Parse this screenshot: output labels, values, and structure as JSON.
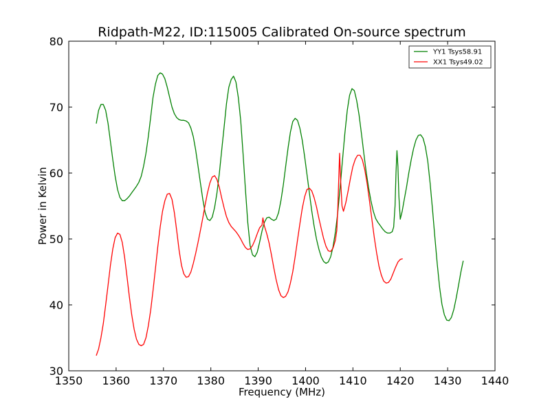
{
  "chart_data": {
    "type": "line",
    "title": "Ridpath-M22, ID:115005 Calibrated On-source spectrum",
    "xlabel": "Frequency (MHz)",
    "ylabel": "Power in Kelvin",
    "xlim": [
      1350,
      1440
    ],
    "ylim": [
      30,
      80
    ],
    "xticks": [
      1350,
      1360,
      1370,
      1380,
      1390,
      1400,
      1410,
      1420,
      1430,
      1440
    ],
    "yticks": [
      30,
      40,
      50,
      60,
      70,
      80
    ],
    "grid": false,
    "legend": {
      "position": "top-right"
    },
    "series": [
      {
        "name": "YY1 Tsys58.91",
        "color": "#008000",
        "points": [
          [
            1355.8,
            67.5
          ],
          [
            1356.3,
            69.5
          ],
          [
            1356.8,
            70.4
          ],
          [
            1357.3,
            70.4
          ],
          [
            1357.8,
            69.5
          ],
          [
            1358.3,
            67.5
          ],
          [
            1358.8,
            64.8
          ],
          [
            1359.3,
            62.0
          ],
          [
            1359.8,
            59.5
          ],
          [
            1360.3,
            57.5
          ],
          [
            1360.8,
            56.3
          ],
          [
            1361.3,
            55.8
          ],
          [
            1361.8,
            55.8
          ],
          [
            1362.3,
            56.1
          ],
          [
            1362.8,
            56.5
          ],
          [
            1363.3,
            57.0
          ],
          [
            1363.8,
            57.5
          ],
          [
            1364.3,
            58.0
          ],
          [
            1364.8,
            58.6
          ],
          [
            1365.3,
            59.5
          ],
          [
            1365.8,
            61.0
          ],
          [
            1366.3,
            63.0
          ],
          [
            1366.8,
            65.5
          ],
          [
            1367.3,
            68.5
          ],
          [
            1367.8,
            71.5
          ],
          [
            1368.3,
            73.5
          ],
          [
            1368.8,
            74.8
          ],
          [
            1369.3,
            75.2
          ],
          [
            1369.8,
            75.0
          ],
          [
            1370.3,
            74.3
          ],
          [
            1370.8,
            73.0
          ],
          [
            1371.3,
            71.5
          ],
          [
            1371.8,
            70.0
          ],
          [
            1372.3,
            69.0
          ],
          [
            1372.8,
            68.4
          ],
          [
            1373.3,
            68.1
          ],
          [
            1373.8,
            68.0
          ],
          [
            1374.3,
            68.0
          ],
          [
            1374.8,
            67.9
          ],
          [
            1375.3,
            67.6
          ],
          [
            1375.8,
            66.8
          ],
          [
            1376.3,
            65.5
          ],
          [
            1376.8,
            63.5
          ],
          [
            1377.3,
            61.0
          ],
          [
            1377.8,
            58.5
          ],
          [
            1378.3,
            56.0
          ],
          [
            1378.8,
            54.0
          ],
          [
            1379.3,
            53.0
          ],
          [
            1379.8,
            52.8
          ],
          [
            1380.3,
            53.3
          ],
          [
            1380.8,
            54.8
          ],
          [
            1381.3,
            57.0
          ],
          [
            1381.8,
            60.0
          ],
          [
            1382.3,
            63.5
          ],
          [
            1382.8,
            67.0
          ],
          [
            1383.3,
            70.5
          ],
          [
            1383.8,
            73.0
          ],
          [
            1384.3,
            74.2
          ],
          [
            1384.8,
            74.7
          ],
          [
            1385.3,
            73.8
          ],
          [
            1385.8,
            71.5
          ],
          [
            1386.3,
            68.0
          ],
          [
            1386.8,
            63.0
          ],
          [
            1387.3,
            57.5
          ],
          [
            1387.8,
            52.5
          ],
          [
            1388.3,
            49.0
          ],
          [
            1388.8,
            47.6
          ],
          [
            1389.3,
            47.3
          ],
          [
            1389.8,
            48.0
          ],
          [
            1390.3,
            49.5
          ],
          [
            1390.8,
            51.2
          ],
          [
            1391.3,
            52.5
          ],
          [
            1391.8,
            53.2
          ],
          [
            1392.3,
            53.3
          ],
          [
            1392.8,
            53.0
          ],
          [
            1393.3,
            52.8
          ],
          [
            1393.8,
            53.0
          ],
          [
            1394.3,
            54.0
          ],
          [
            1394.8,
            55.8
          ],
          [
            1395.3,
            58.2
          ],
          [
            1395.8,
            61.0
          ],
          [
            1396.3,
            63.8
          ],
          [
            1396.8,
            66.2
          ],
          [
            1397.3,
            67.8
          ],
          [
            1397.8,
            68.3
          ],
          [
            1398.3,
            68.0
          ],
          [
            1398.8,
            66.8
          ],
          [
            1399.3,
            65.0
          ],
          [
            1399.8,
            62.5
          ],
          [
            1400.3,
            59.8
          ],
          [
            1400.8,
            57.0
          ],
          [
            1401.3,
            54.3
          ],
          [
            1401.8,
            52.0
          ],
          [
            1402.3,
            50.0
          ],
          [
            1402.8,
            48.5
          ],
          [
            1403.3,
            47.3
          ],
          [
            1403.8,
            46.6
          ],
          [
            1404.3,
            46.3
          ],
          [
            1404.8,
            46.5
          ],
          [
            1405.3,
            47.3
          ],
          [
            1405.8,
            48.8
          ],
          [
            1406.3,
            51.0
          ],
          [
            1406.8,
            54.0
          ],
          [
            1407.3,
            57.8
          ],
          [
            1407.8,
            62.0
          ],
          [
            1408.3,
            66.0
          ],
          [
            1408.8,
            69.5
          ],
          [
            1409.3,
            71.8
          ],
          [
            1409.8,
            72.8
          ],
          [
            1410.3,
            72.5
          ],
          [
            1410.8,
            71.0
          ],
          [
            1411.3,
            68.8
          ],
          [
            1411.8,
            66.0
          ],
          [
            1412.3,
            63.0
          ],
          [
            1412.8,
            60.2
          ],
          [
            1413.3,
            57.8
          ],
          [
            1413.8,
            55.8
          ],
          [
            1414.3,
            54.2
          ],
          [
            1414.8,
            53.1
          ],
          [
            1415.3,
            52.5
          ],
          [
            1415.8,
            52.0
          ],
          [
            1416.3,
            51.5
          ],
          [
            1416.8,
            51.1
          ],
          [
            1417.3,
            50.9
          ],
          [
            1417.8,
            50.9
          ],
          [
            1418.3,
            51.1
          ],
          [
            1418.6,
            51.8
          ],
          [
            1418.9,
            55.0
          ],
          [
            1419.1,
            60.0
          ],
          [
            1419.3,
            63.4
          ],
          [
            1419.5,
            61.0
          ],
          [
            1419.7,
            56.5
          ],
          [
            1420.0,
            53.0
          ],
          [
            1420.4,
            54.2
          ],
          [
            1420.8,
            55.8
          ],
          [
            1421.3,
            57.8
          ],
          [
            1421.8,
            60.0
          ],
          [
            1422.3,
            62.0
          ],
          [
            1422.8,
            63.7
          ],
          [
            1423.3,
            65.0
          ],
          [
            1423.8,
            65.7
          ],
          [
            1424.3,
            65.8
          ],
          [
            1424.8,
            65.3
          ],
          [
            1425.3,
            64.0
          ],
          [
            1425.8,
            61.8
          ],
          [
            1426.3,
            58.5
          ],
          [
            1426.8,
            54.5
          ],
          [
            1427.3,
            50.3
          ],
          [
            1427.8,
            46.2
          ],
          [
            1428.3,
            42.7
          ],
          [
            1428.8,
            40.1
          ],
          [
            1429.3,
            38.5
          ],
          [
            1429.8,
            37.7
          ],
          [
            1430.3,
            37.6
          ],
          [
            1430.8,
            38.1
          ],
          [
            1431.3,
            39.3
          ],
          [
            1431.8,
            41.0
          ],
          [
            1432.3,
            43.0
          ],
          [
            1432.8,
            45.0
          ],
          [
            1433.3,
            46.7
          ]
        ]
      },
      {
        "name": "XX1 Tsys49.02",
        "color": "#ff0000",
        "points": [
          [
            1355.8,
            32.3
          ],
          [
            1356.3,
            33.3
          ],
          [
            1356.8,
            35.0
          ],
          [
            1357.3,
            37.2
          ],
          [
            1357.8,
            40.0
          ],
          [
            1358.3,
            43.0
          ],
          [
            1358.8,
            46.0
          ],
          [
            1359.3,
            48.5
          ],
          [
            1359.8,
            50.2
          ],
          [
            1360.3,
            50.9
          ],
          [
            1360.8,
            50.7
          ],
          [
            1361.3,
            49.5
          ],
          [
            1361.8,
            47.2
          ],
          [
            1362.3,
            44.3
          ],
          [
            1362.8,
            41.2
          ],
          [
            1363.3,
            38.5
          ],
          [
            1363.8,
            36.3
          ],
          [
            1364.3,
            34.8
          ],
          [
            1364.8,
            34.0
          ],
          [
            1365.3,
            33.8
          ],
          [
            1365.8,
            34.0
          ],
          [
            1366.3,
            35.0
          ],
          [
            1366.8,
            36.8
          ],
          [
            1367.3,
            39.2
          ],
          [
            1367.8,
            42.2
          ],
          [
            1368.3,
            45.5
          ],
          [
            1368.8,
            48.8
          ],
          [
            1369.3,
            51.8
          ],
          [
            1369.8,
            54.2
          ],
          [
            1370.3,
            55.8
          ],
          [
            1370.8,
            56.8
          ],
          [
            1371.3,
            56.9
          ],
          [
            1371.8,
            56.0
          ],
          [
            1372.3,
            54.0
          ],
          [
            1372.8,
            51.2
          ],
          [
            1373.3,
            48.3
          ],
          [
            1373.8,
            46.0
          ],
          [
            1374.3,
            44.7
          ],
          [
            1374.8,
            44.2
          ],
          [
            1375.3,
            44.3
          ],
          [
            1375.8,
            45.0
          ],
          [
            1376.3,
            46.3
          ],
          [
            1376.8,
            47.8
          ],
          [
            1377.3,
            49.5
          ],
          [
            1377.8,
            51.3
          ],
          [
            1378.3,
            53.2
          ],
          [
            1378.8,
            55.2
          ],
          [
            1379.3,
            57.0
          ],
          [
            1379.8,
            58.5
          ],
          [
            1380.3,
            59.4
          ],
          [
            1380.8,
            59.6
          ],
          [
            1381.3,
            59.0
          ],
          [
            1381.8,
            57.8
          ],
          [
            1382.3,
            56.2
          ],
          [
            1382.8,
            54.7
          ],
          [
            1383.3,
            53.4
          ],
          [
            1383.8,
            52.5
          ],
          [
            1384.3,
            51.9
          ],
          [
            1384.8,
            51.5
          ],
          [
            1385.3,
            51.1
          ],
          [
            1385.8,
            50.6
          ],
          [
            1386.3,
            50.0
          ],
          [
            1386.8,
            49.3
          ],
          [
            1387.3,
            48.7
          ],
          [
            1387.8,
            48.4
          ],
          [
            1388.3,
            48.5
          ],
          [
            1388.8,
            49.0
          ],
          [
            1389.3,
            49.8
          ],
          [
            1389.8,
            50.8
          ],
          [
            1390.3,
            51.7
          ],
          [
            1390.8,
            52.1
          ],
          [
            1391.0,
            53.2
          ],
          [
            1391.3,
            52.0
          ],
          [
            1391.8,
            50.8
          ],
          [
            1392.3,
            49.4
          ],
          [
            1392.8,
            47.6
          ],
          [
            1393.3,
            45.6
          ],
          [
            1393.8,
            43.8
          ],
          [
            1394.3,
            42.3
          ],
          [
            1394.8,
            41.4
          ],
          [
            1395.3,
            41.1
          ],
          [
            1395.8,
            41.3
          ],
          [
            1396.3,
            42.0
          ],
          [
            1396.8,
            43.3
          ],
          [
            1397.3,
            45.0
          ],
          [
            1397.8,
            47.3
          ],
          [
            1398.3,
            49.8
          ],
          [
            1398.8,
            52.3
          ],
          [
            1399.3,
            54.6
          ],
          [
            1399.8,
            56.4
          ],
          [
            1400.3,
            57.5
          ],
          [
            1400.8,
            57.7
          ],
          [
            1401.3,
            57.3
          ],
          [
            1401.8,
            56.3
          ],
          [
            1402.3,
            54.9
          ],
          [
            1402.8,
            53.2
          ],
          [
            1403.3,
            51.6
          ],
          [
            1403.8,
            50.1
          ],
          [
            1404.3,
            48.9
          ],
          [
            1404.8,
            48.2
          ],
          [
            1405.3,
            48.1
          ],
          [
            1405.8,
            48.6
          ],
          [
            1406.3,
            49.8
          ],
          [
            1406.6,
            51.3
          ],
          [
            1406.8,
            54.5
          ],
          [
            1407.0,
            59.0
          ],
          [
            1407.2,
            63.0
          ],
          [
            1407.4,
            59.0
          ],
          [
            1407.7,
            55.0
          ],
          [
            1408.0,
            54.2
          ],
          [
            1408.5,
            55.5
          ],
          [
            1409.0,
            57.3
          ],
          [
            1409.5,
            59.3
          ],
          [
            1410.0,
            61.0
          ],
          [
            1410.5,
            62.1
          ],
          [
            1411.0,
            62.7
          ],
          [
            1411.5,
            62.7
          ],
          [
            1412.0,
            62.0
          ],
          [
            1412.5,
            60.5
          ],
          [
            1413.0,
            58.4
          ],
          [
            1413.5,
            55.8
          ],
          [
            1414.0,
            53.0
          ],
          [
            1414.5,
            50.3
          ],
          [
            1415.0,
            47.9
          ],
          [
            1415.5,
            45.9
          ],
          [
            1416.0,
            44.5
          ],
          [
            1416.5,
            43.6
          ],
          [
            1417.0,
            43.3
          ],
          [
            1417.5,
            43.4
          ],
          [
            1418.0,
            43.9
          ],
          [
            1418.5,
            44.8
          ],
          [
            1419.0,
            45.7
          ],
          [
            1419.5,
            46.5
          ],
          [
            1420.0,
            46.9
          ],
          [
            1420.5,
            47.0
          ]
        ]
      }
    ]
  }
}
